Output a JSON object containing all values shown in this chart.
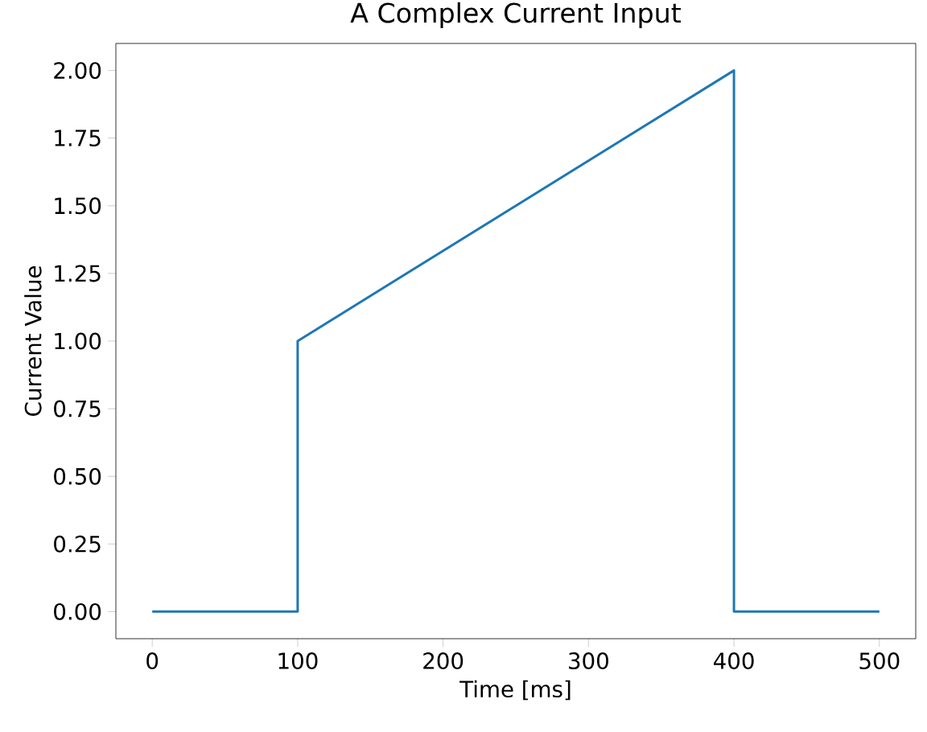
{
  "chart_data": {
    "type": "line",
    "title": "A Complex Current Input",
    "xlabel": "Time [ms]",
    "ylabel": "Current Value",
    "x": [
      0,
      100,
      100,
      400,
      400,
      500
    ],
    "series": [
      {
        "color": "#1f77b4",
        "values": [
          0,
          0,
          1,
          2,
          0,
          0
        ]
      }
    ],
    "xlim": [
      -25,
      525
    ],
    "ylim": [
      -0.1,
      2.1
    ],
    "xticks": [
      0,
      100,
      200,
      300,
      400,
      500
    ],
    "yticks": [
      {
        "value": 0,
        "label": "0.00"
      },
      {
        "value": 0.25,
        "label": "0.25"
      },
      {
        "value": 0.5,
        "label": "0.50"
      },
      {
        "value": 0.75,
        "label": "0.75"
      },
      {
        "value": 1,
        "label": "1.00"
      },
      {
        "value": 1.25,
        "label": "1.25"
      },
      {
        "value": 1.5,
        "label": "1.50"
      },
      {
        "value": 1.75,
        "label": "1.75"
      },
      {
        "value": 2,
        "label": "2.00"
      }
    ],
    "grid": false,
    "marker": "none",
    "line_style": "solid"
  }
}
